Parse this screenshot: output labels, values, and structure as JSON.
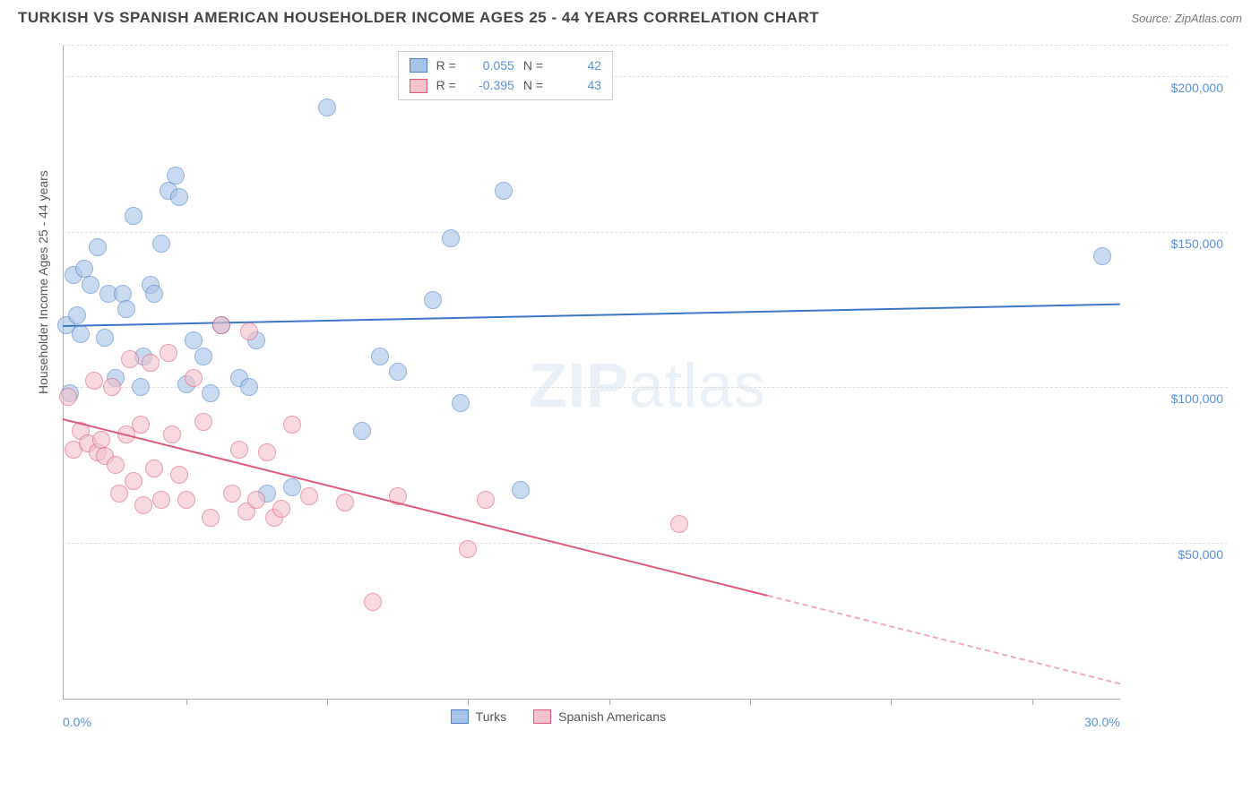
{
  "title": "TURKISH VS SPANISH AMERICAN HOUSEHOLDER INCOME AGES 25 - 44 YEARS CORRELATION CHART",
  "source": "Source: ZipAtlas.com",
  "ylabel": "Householder Income Ages 25 - 44 years",
  "watermark_bold": "ZIP",
  "watermark_light": "atlas",
  "chart": {
    "type": "scatter",
    "background_color": "#ffffff",
    "grid_color": "#dddddd",
    "axis_color": "#aaaaaa",
    "xlim": [
      0,
      30
    ],
    "ylim": [
      0,
      210000
    ],
    "x_unit_suffix": "%",
    "y_prefix": "$",
    "xlabel_start": "0.0%",
    "xlabel_end": "30.0%",
    "y_gridlines": [
      50000,
      100000,
      150000,
      200000,
      210000
    ],
    "y_ticks": [
      {
        "value": 50000,
        "label": "$50,000"
      },
      {
        "value": 100000,
        "label": "$100,000"
      },
      {
        "value": 150000,
        "label": "$150,000"
      },
      {
        "value": 200000,
        "label": "$200,000"
      }
    ],
    "x_tick_positions": [
      3.5,
      7.5,
      11.5,
      15.5,
      19.5,
      23.5,
      27.5
    ],
    "tick_label_color": "#5b8fd6",
    "tick_label_fontsize": 14,
    "label_fontsize": 14,
    "marker_radius": 9,
    "marker_opacity": 0.35,
    "marker_stroke_opacity": 0.8,
    "trend_line_width": 2
  },
  "series": [
    {
      "name": "Turks",
      "fill_color": "#a6c4e8",
      "stroke_color": "#4a7fc7",
      "trend_color": "#3d76c9",
      "R": "0.055",
      "N": "42",
      "trend": {
        "x1": 0,
        "y1": 120000,
        "x2": 30,
        "y2": 127000,
        "dash_from_x": null
      },
      "points": [
        [
          0.1,
          120000
        ],
        [
          0.2,
          98000
        ],
        [
          0.3,
          136000
        ],
        [
          0.4,
          123000
        ],
        [
          0.5,
          117000
        ],
        [
          0.6,
          138000
        ],
        [
          0.8,
          133000
        ],
        [
          1.0,
          145000
        ],
        [
          1.2,
          116000
        ],
        [
          1.3,
          130000
        ],
        [
          1.5,
          103000
        ],
        [
          1.7,
          130000
        ],
        [
          1.8,
          125000
        ],
        [
          2.0,
          155000
        ],
        [
          2.2,
          100000
        ],
        [
          2.3,
          110000
        ],
        [
          2.5,
          133000
        ],
        [
          2.6,
          130000
        ],
        [
          2.8,
          146000
        ],
        [
          3.0,
          163000
        ],
        [
          3.2,
          168000
        ],
        [
          3.3,
          161000
        ],
        [
          3.5,
          101000
        ],
        [
          3.7,
          115000
        ],
        [
          4.0,
          110000
        ],
        [
          4.2,
          98000
        ],
        [
          4.5,
          120000
        ],
        [
          5.0,
          103000
        ],
        [
          5.3,
          100000
        ],
        [
          5.5,
          115000
        ],
        [
          5.8,
          66000
        ],
        [
          6.5,
          68000
        ],
        [
          7.5,
          190000
        ],
        [
          8.5,
          86000
        ],
        [
          9.0,
          110000
        ],
        [
          9.5,
          105000
        ],
        [
          10.5,
          128000
        ],
        [
          11.0,
          148000
        ],
        [
          11.3,
          95000
        ],
        [
          12.5,
          163000
        ],
        [
          13.0,
          67000
        ],
        [
          29.5,
          142000
        ]
      ]
    },
    {
      "name": "Spanish Americans",
      "fill_color": "#f2c1cb",
      "stroke_color": "#e05a7a",
      "trend_color": "#e05a7a",
      "R": "-0.395",
      "N": "43",
      "trend": {
        "x1": 0,
        "y1": 90000,
        "x2": 30,
        "y2": 5000,
        "dash_from_x": 20
      },
      "points": [
        [
          0.15,
          97000
        ],
        [
          0.3,
          80000
        ],
        [
          0.5,
          86000
        ],
        [
          0.7,
          82000
        ],
        [
          0.9,
          102000
        ],
        [
          1.0,
          79000
        ],
        [
          1.1,
          83000
        ],
        [
          1.2,
          78000
        ],
        [
          1.4,
          100000
        ],
        [
          1.5,
          75000
        ],
        [
          1.6,
          66000
        ],
        [
          1.8,
          85000
        ],
        [
          1.9,
          109000
        ],
        [
          2.0,
          70000
        ],
        [
          2.2,
          88000
        ],
        [
          2.3,
          62000
        ],
        [
          2.5,
          108000
        ],
        [
          2.6,
          74000
        ],
        [
          2.8,
          64000
        ],
        [
          3.0,
          111000
        ],
        [
          3.1,
          85000
        ],
        [
          3.3,
          72000
        ],
        [
          3.5,
          64000
        ],
        [
          3.7,
          103000
        ],
        [
          4.0,
          89000
        ],
        [
          4.2,
          58000
        ],
        [
          4.5,
          120000
        ],
        [
          4.8,
          66000
        ],
        [
          5.0,
          80000
        ],
        [
          5.2,
          60000
        ],
        [
          5.3,
          118000
        ],
        [
          5.5,
          64000
        ],
        [
          5.8,
          79000
        ],
        [
          6.0,
          58000
        ],
        [
          6.2,
          61000
        ],
        [
          6.5,
          88000
        ],
        [
          7.0,
          65000
        ],
        [
          8.0,
          63000
        ],
        [
          8.8,
          31000
        ],
        [
          9.5,
          65000
        ],
        [
          11.5,
          48000
        ],
        [
          12.0,
          64000
        ],
        [
          17.5,
          56000
        ]
      ]
    }
  ],
  "legend_top": {
    "r_label": "R =",
    "n_label": "N ="
  },
  "legend_bottom": {
    "items": [
      "Turks",
      "Spanish Americans"
    ]
  }
}
